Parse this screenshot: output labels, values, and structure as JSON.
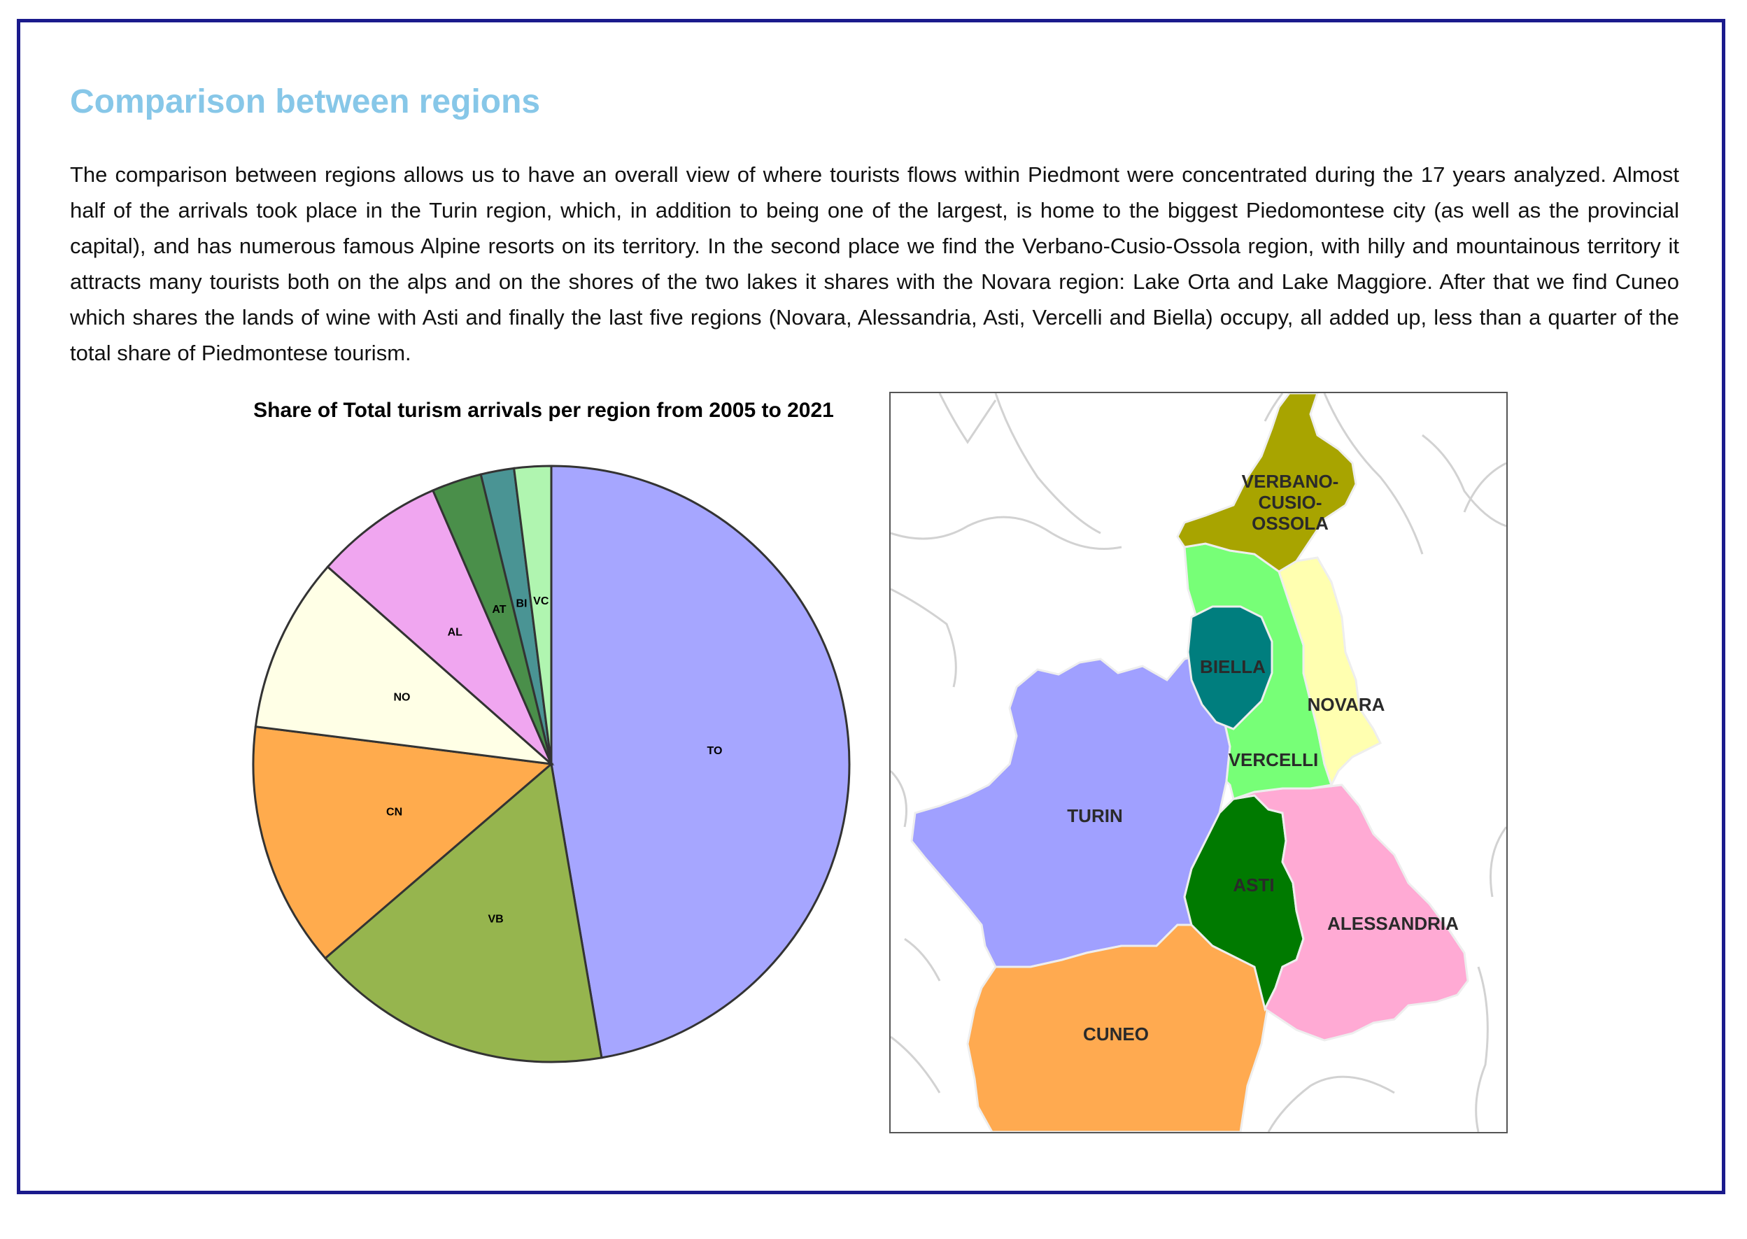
{
  "page": {
    "title": "Comparison between regions",
    "intro": "The comparison between regions allows us to have an overall view of where tourists flows within Piedmont were concentrated during the 17 years analyzed. Almost half of the arrivals took place in the Turin region, which, in addition to being one of the largest, is home to the biggest Piedomontese city (as well as the provincial capital), and has numerous famous Alpine resorts on its territory. In the second place we find the Verbano-Cusio-Ossola region, with hilly and mountainous territory it attracts many tourists both on the alps and on the shores of the two lakes it shares with the Novara region: Lake Orta and Lake Maggiore. After that we find Cuneo which shares the lands of wine with Asti and finally the last five regions (Novara, Alessandria, Asti, Vercelli and Biella) occupy, all added up, less than a quarter of the total share of Piedmontese tourism."
  },
  "chart_data": {
    "type": "pie",
    "title": "Share of Total turism arrivals per region from 2005 to 2021",
    "start": "12 o'clock",
    "direction": "clockwise",
    "slices": [
      {
        "label": "TO",
        "value": 47.3,
        "color": "#a6a6ff"
      },
      {
        "label": "VB",
        "value": 16.4,
        "color": "#96b54e"
      },
      {
        "label": "CN",
        "value": 13.3,
        "color": "#ffab4d"
      },
      {
        "label": "NO",
        "value": 9.5,
        "color": "#ffffe6"
      },
      {
        "label": "AL",
        "value": 7.0,
        "color": "#f0a6f0"
      },
      {
        "label": "AT",
        "value": 2.7,
        "color": "#4a8f4a"
      },
      {
        "label": "BI",
        "value": 1.8,
        "color": "#4a9494"
      },
      {
        "label": "VC",
        "value": 2.0,
        "color": "#b0f5b0"
      }
    ]
  },
  "map": {
    "regions": [
      {
        "name": "VERBANO-CUSIO-OSSOLA",
        "lines": [
          "VERBANO-",
          "CUSIO-",
          "OSSOLA"
        ],
        "color": "#a8a400"
      },
      {
        "name": "BIELLA",
        "lines": [
          "BIELLA"
        ],
        "color": "#007e7e"
      },
      {
        "name": "NOVARA",
        "lines": [
          "NOVARA"
        ],
        "color": "#ffffb0"
      },
      {
        "name": "VERCELLI",
        "lines": [
          "VERCELLI"
        ],
        "color": "#77ff77"
      },
      {
        "name": "TURIN",
        "lines": [
          "TURIN"
        ],
        "color": "#a0a0ff"
      },
      {
        "name": "ASTI",
        "lines": [
          "ASTI"
        ],
        "color": "#007a00"
      },
      {
        "name": "ALESSANDRIA",
        "lines": [
          "ALESSANDRIA"
        ],
        "color": "#ffaad4"
      },
      {
        "name": "CUNEO",
        "lines": [
          "CUNEO"
        ],
        "color": "#ffaa50"
      }
    ]
  }
}
